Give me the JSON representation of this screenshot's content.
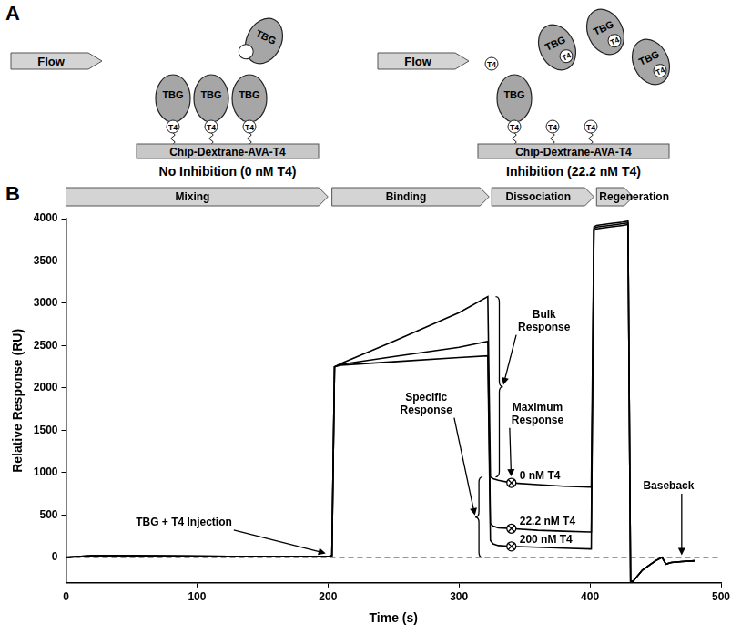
{
  "diagram": {
    "label": "A",
    "panels": [
      {
        "flow": "Flow",
        "chip": "Chip-Dextrane-AVA-T4",
        "caption": "No Inhibition (0 nM T4)",
        "surface": [
          {
            "protein": "TBG",
            "ligand": "T4"
          },
          {
            "protein": "TBG",
            "ligand": "T4"
          },
          {
            "protein": "TBG",
            "ligand": "T4"
          }
        ],
        "solution": [
          {
            "protein": "TBG"
          }
        ]
      },
      {
        "flow": "Flow",
        "chip": "Chip-Dextrane-AVA-T4",
        "caption": "Inhibition (22.2 nM T4)",
        "surface": [
          {
            "protein": "TBG",
            "ligand": "T4"
          },
          {
            "ligand": "T4"
          },
          {
            "ligand": "T4"
          }
        ],
        "solution": [
          {
            "ligand": "T4"
          },
          {
            "protein": "TBG",
            "ligand": "T4"
          },
          {
            "protein": "TBG",
            "ligand": "T4"
          },
          {
            "protein": "TBG",
            "ligand": "T4"
          }
        ]
      }
    ]
  },
  "chart_data": {
    "type": "line",
    "panel_label": "B",
    "x_label": "Time (s)",
    "y_label": "Relative Response (RU)",
    "xlim": [
      0,
      500
    ],
    "xticks": [
      0,
      100,
      200,
      300,
      400,
      500
    ],
    "ylim": [
      -300,
      4000
    ],
    "yticks": [
      0,
      500,
      1000,
      1500,
      2000,
      2500,
      3000,
      3500,
      4000
    ],
    "grid": false,
    "x": [
      0,
      20,
      50,
      100,
      150,
      200,
      203,
      205,
      210,
      250,
      300,
      322,
      324,
      326,
      330,
      340,
      360,
      380,
      400,
      401,
      403,
      405,
      415,
      425,
      429,
      431,
      433,
      440,
      450,
      455,
      458,
      462,
      470,
      480
    ],
    "series": [
      {
        "name": "0 nM T4",
        "color": "#000000",
        "line_style": "solid",
        "values": [
          0,
          20,
          20,
          15,
          10,
          10,
          20,
          2250,
          2290,
          2550,
          2890,
          3080,
          950,
          930,
          910,
          880,
          860,
          840,
          830,
          830,
          3900,
          3920,
          3940,
          3960,
          3970,
          -280,
          -280,
          -150,
          -40,
          0,
          -80,
          -60,
          -50,
          -40
        ],
        "report_point": {
          "x": 340,
          "y": 880,
          "marker": "crossed_circle"
        }
      },
      {
        "name": "22.2 nM T4",
        "color": "#000000",
        "line_style": "solid",
        "values": [
          0,
          20,
          20,
          15,
          10,
          10,
          20,
          2250,
          2280,
          2370,
          2480,
          2550,
          400,
          370,
          350,
          340,
          320,
          310,
          300,
          300,
          3880,
          3900,
          3920,
          3940,
          3950,
          -280,
          -280,
          -150,
          -40,
          0,
          -80,
          -60,
          -50,
          -40
        ],
        "report_point": {
          "x": 340,
          "y": 340,
          "marker": "crossed_circle"
        }
      },
      {
        "name": "200 nM T4",
        "color": "#000000",
        "line_style": "solid",
        "values": [
          0,
          20,
          20,
          15,
          10,
          10,
          20,
          2250,
          2270,
          2310,
          2360,
          2380,
          200,
          160,
          140,
          130,
          120,
          110,
          100,
          100,
          3860,
          3880,
          3900,
          3920,
          3930,
          -280,
          -280,
          -150,
          -40,
          0,
          -80,
          -60,
          -50,
          -40
        ],
        "report_point": {
          "x": 340,
          "y": 130,
          "marker": "crossed_circle"
        }
      }
    ],
    "reference_line": {
      "y": 0,
      "line_style": "dashed"
    },
    "phases": [
      {
        "name": "Mixing",
        "start": 0,
        "end": 200
      },
      {
        "name": "Binding",
        "start": 203,
        "end": 323
      },
      {
        "name": "Dissociation",
        "start": 325,
        "end": 403
      },
      {
        "name": "Regeneration",
        "start": 405,
        "end": 433
      }
    ],
    "annotations": [
      {
        "text": "TBG + T4 Injection",
        "x": 90,
        "y": 420,
        "arrow_to": {
          "x": 203,
          "y": 30
        }
      },
      {
        "text": "Bulk Response",
        "x": 365,
        "y": 2800,
        "bracket": {
          "x": 328,
          "from": 950,
          "to": 3080
        }
      },
      {
        "text": "Maximum Response",
        "x": 360,
        "y": 1700,
        "arrow_to": {
          "x": 340,
          "y": 880
        }
      },
      {
        "text": "Specific Response",
        "x": 275,
        "y": 1820,
        "bracket": {
          "x": 318,
          "from": 0,
          "to": 950
        }
      },
      {
        "text": "Baseback",
        "x": 460,
        "y": 850,
        "arrow_to": {
          "x": 470,
          "y": -50
        }
      }
    ]
  }
}
